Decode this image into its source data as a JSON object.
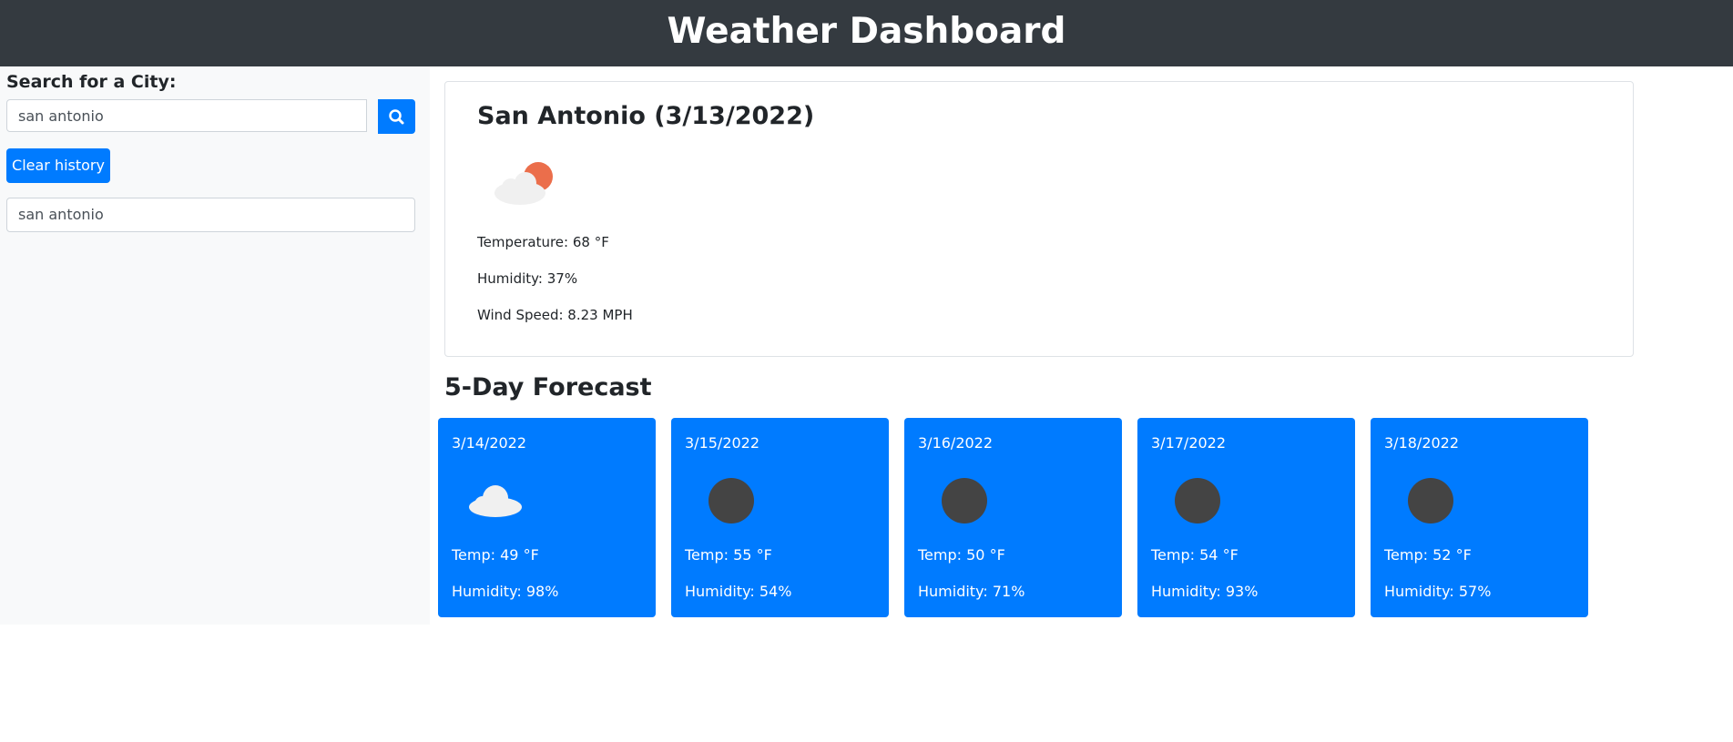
{
  "header": {
    "title": "Weather Dashboard"
  },
  "sidebar": {
    "label": "Search for a City:",
    "search_value": "san antonio",
    "clear_button": "Clear history",
    "history": [
      "san antonio"
    ]
  },
  "current": {
    "title": "San Antonio (3/13/2022)",
    "temperature": "Temperature: 68 °F",
    "humidity": "Humidity: 37%",
    "wind": "Wind Speed: 8.23 MPH"
  },
  "forecast": {
    "title": "5-Day Forecast",
    "days": [
      {
        "date": "3/14/2022",
        "temp": "Temp: 49 °F",
        "humidity": "Humidity: 98%"
      },
      {
        "date": "3/15/2022",
        "temp": "Temp: 55 °F",
        "humidity": "Humidity: 54%"
      },
      {
        "date": "3/16/2022",
        "temp": "Temp: 50 °F",
        "humidity": "Humidity: 71%"
      },
      {
        "date": "3/17/2022",
        "temp": "Temp: 54 °F",
        "humidity": "Humidity: 93%"
      },
      {
        "date": "3/18/2022",
        "temp": "Temp: 52 °F",
        "humidity": "Humidity: 57%"
      }
    ]
  }
}
